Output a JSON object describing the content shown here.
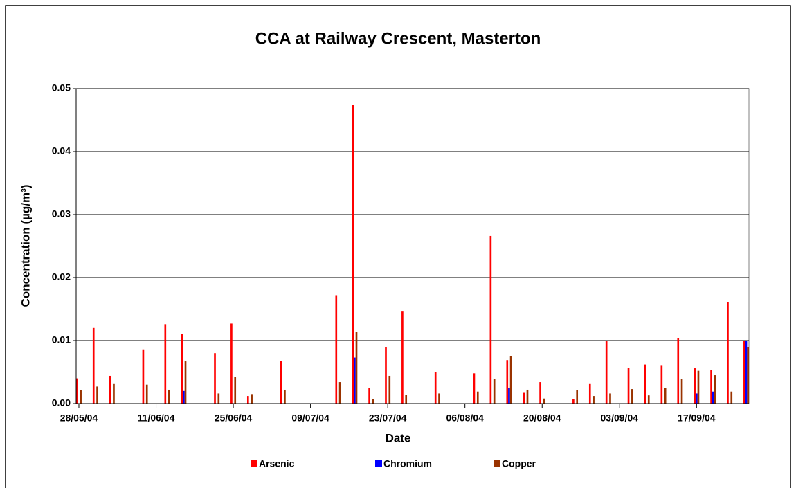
{
  "chart_data": {
    "type": "bar",
    "title": "CCA at Railway Crescent, Masterton",
    "x_label": "Date",
    "y_label": "Concentration (µg/m³)",
    "x": [
      "28/05/04",
      "31/05/04",
      "03/06/04",
      "09/06/04",
      "13/06/04",
      "16/06/04",
      "22/06/04",
      "25/06/04",
      "28/06/04",
      "04/07/04",
      "14/07/04",
      "17/07/04",
      "20/07/04",
      "23/07/04",
      "26/07/04",
      "01/08/04",
      "08/08/04",
      "11/08/04",
      "14/08/04",
      "17/08/04",
      "20/08/04",
      "26/08/04",
      "29/08/04",
      "01/09/04",
      "05/09/04",
      "08/09/04",
      "11/09/04",
      "14/09/04",
      "17/09/04",
      "20/09/04",
      "23/09/04",
      "26/09/04"
    ],
    "series": [
      {
        "name": "Arsenic",
        "color": "#ff0000",
        "values": [
          0.004,
          0.012,
          0.0044,
          0.0086,
          0.0126,
          0.011,
          0.008,
          0.0127,
          0.0012,
          0.0068,
          0.0172,
          0.0474,
          0.0025,
          0.009,
          0.0146,
          0.005,
          0.0048,
          0.0266,
          0.0069,
          0.0017,
          0.0034,
          0.0007,
          0.0031,
          0.01,
          0.0057,
          0.0062,
          0.006,
          0.0104,
          0.0056,
          0.0053,
          0.0161,
          0.0099
        ]
      },
      {
        "name": "Chromium",
        "color": "#0000ff",
        "values": [
          null,
          null,
          null,
          null,
          null,
          0.002,
          null,
          null,
          null,
          null,
          null,
          0.0073,
          null,
          null,
          null,
          null,
          null,
          null,
          0.0025,
          null,
          null,
          null,
          null,
          null,
          null,
          null,
          null,
          null,
          0.0016,
          0.0019,
          null,
          0.01
        ]
      },
      {
        "name": "Copper",
        "color": "#993300",
        "values": [
          0.0021,
          0.0027,
          0.0031,
          0.003,
          0.0022,
          0.0067,
          0.0016,
          0.0042,
          0.0015,
          0.0022,
          0.0034,
          0.0114,
          0.0007,
          0.0044,
          0.0014,
          0.0016,
          0.0019,
          0.0039,
          0.0075,
          0.0022,
          0.0008,
          0.0021,
          0.0012,
          0.0016,
          0.0023,
          0.0013,
          0.0025,
          0.0039,
          0.0052,
          0.0045,
          0.0019,
          0.009
        ]
      }
    ],
    "xlim": [
      "28/05/04",
      "27/09/04"
    ],
    "xticks": [
      "28/05/04",
      "11/06/04",
      "25/06/04",
      "09/07/04",
      "23/07/04",
      "06/08/04",
      "20/08/04",
      "03/09/04",
      "17/09/04"
    ],
    "ylim": [
      0,
      0.05
    ],
    "yticks": [
      {
        "value": 0,
        "label": "0.00"
      },
      {
        "value": 0.01,
        "label": "0.01"
      },
      0.02,
      0.03,
      0.04,
      0.05
    ],
    "grid": true,
    "legend": "bottom"
  }
}
